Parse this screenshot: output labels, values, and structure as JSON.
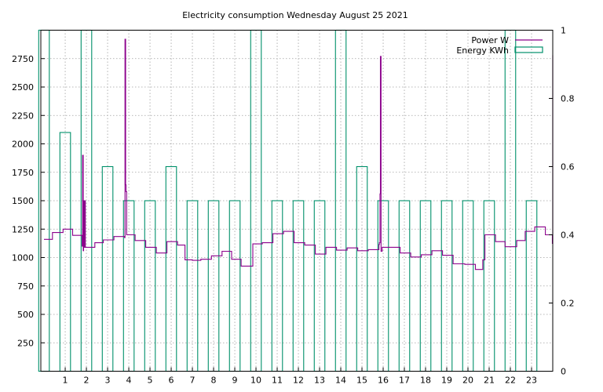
{
  "chart_data": {
    "type": "line",
    "title": "Electricity consumption Wednesday August 25 2021",
    "x_ticks": [
      "1",
      "2",
      "3",
      "4",
      "5",
      "6",
      "7",
      "8",
      "9",
      "10",
      "11",
      "12",
      "13",
      "14",
      "15",
      "16",
      "17",
      "18",
      "19",
      "20",
      "21",
      "22",
      "23"
    ],
    "xlim": [
      -0.15,
      24.0
    ],
    "ylim": [
      0,
      3000
    ],
    "y2lim": [
      0,
      1
    ],
    "y_ticks": [
      "250",
      "500",
      "750",
      "1000",
      "1250",
      "1500",
      "1750",
      "2000",
      "2250",
      "2500",
      "2750"
    ],
    "y2_ticks": [
      "0",
      "0.2",
      "0.4",
      "0.6",
      "0.8",
      "1"
    ],
    "grid": true,
    "legend_position": "top-right",
    "colors": {
      "power": "#8b008b",
      "energy": "#00906a",
      "grid": "#a0a0a0"
    },
    "series": [
      {
        "name": "Power W",
        "axis": "left",
        "style": "steps",
        "x": [
          0,
          0.4,
          0.9,
          1.35,
          1.8,
          1.82,
          1.85,
          1.87,
          1.9,
          1.92,
          1.95,
          1.97,
          2.0,
          2.4,
          2.8,
          3.3,
          3.8,
          3.82,
          3.85,
          3.87,
          3.9,
          3.92,
          3.95,
          4.3,
          4.8,
          5.3,
          5.8,
          6.3,
          6.65,
          7.0,
          7.4,
          7.9,
          8.4,
          8.85,
          9.3,
          9.85,
          10.3,
          10.8,
          11.3,
          11.8,
          12.3,
          12.8,
          13.3,
          13.8,
          14.3,
          14.8,
          15.3,
          15.8,
          15.82,
          15.85,
          15.87,
          15.9,
          15.95,
          16.3,
          16.8,
          17.3,
          17.8,
          18.3,
          18.8,
          19.3,
          19.85,
          20.35,
          20.7,
          20.8,
          21.3,
          21.75,
          22.3,
          22.7,
          23.15,
          23.65,
          23.98
        ],
        "values": [
          1160,
          1220,
          1250,
          1195,
          1100,
          1900,
          1060,
          1500,
          1090,
          1500,
          1090,
          1090,
          1090,
          1130,
          1155,
          1185,
          1175,
          2920,
          1640,
          1580,
          1200,
          1200,
          1200,
          1150,
          1090,
          1040,
          1140,
          1110,
          980,
          975,
          985,
          1015,
          1055,
          985,
          925,
          1120,
          1130,
          1210,
          1230,
          1130,
          1110,
          1030,
          1090,
          1065,
          1085,
          1060,
          1070,
          1115,
          1130,
          1560,
          2770,
          1055,
          1090,
          1090,
          1040,
          1005,
          1025,
          1060,
          1020,
          945,
          940,
          895,
          980,
          1200,
          1140,
          1095,
          1150,
          1230,
          1270,
          1200,
          1125
        ]
      },
      {
        "name": "Energy KWh",
        "axis": "right",
        "style": "boxes",
        "x": [
          0,
          1,
          2,
          3,
          4,
          5,
          6,
          7,
          8,
          9,
          10,
          11,
          12,
          13,
          14,
          15,
          16,
          17,
          18,
          19,
          20,
          21,
          22,
          23
        ],
        "values": [
          1.0,
          0.7,
          1.0,
          0.6,
          0.5,
          0.5,
          0.6,
          0.5,
          0.5,
          0.5,
          1.0,
          0.5,
          0.5,
          0.5,
          1.0,
          0.6,
          0.5,
          0.5,
          0.5,
          0.5,
          0.5,
          0.5,
          1.0,
          0.5
        ]
      }
    ]
  }
}
